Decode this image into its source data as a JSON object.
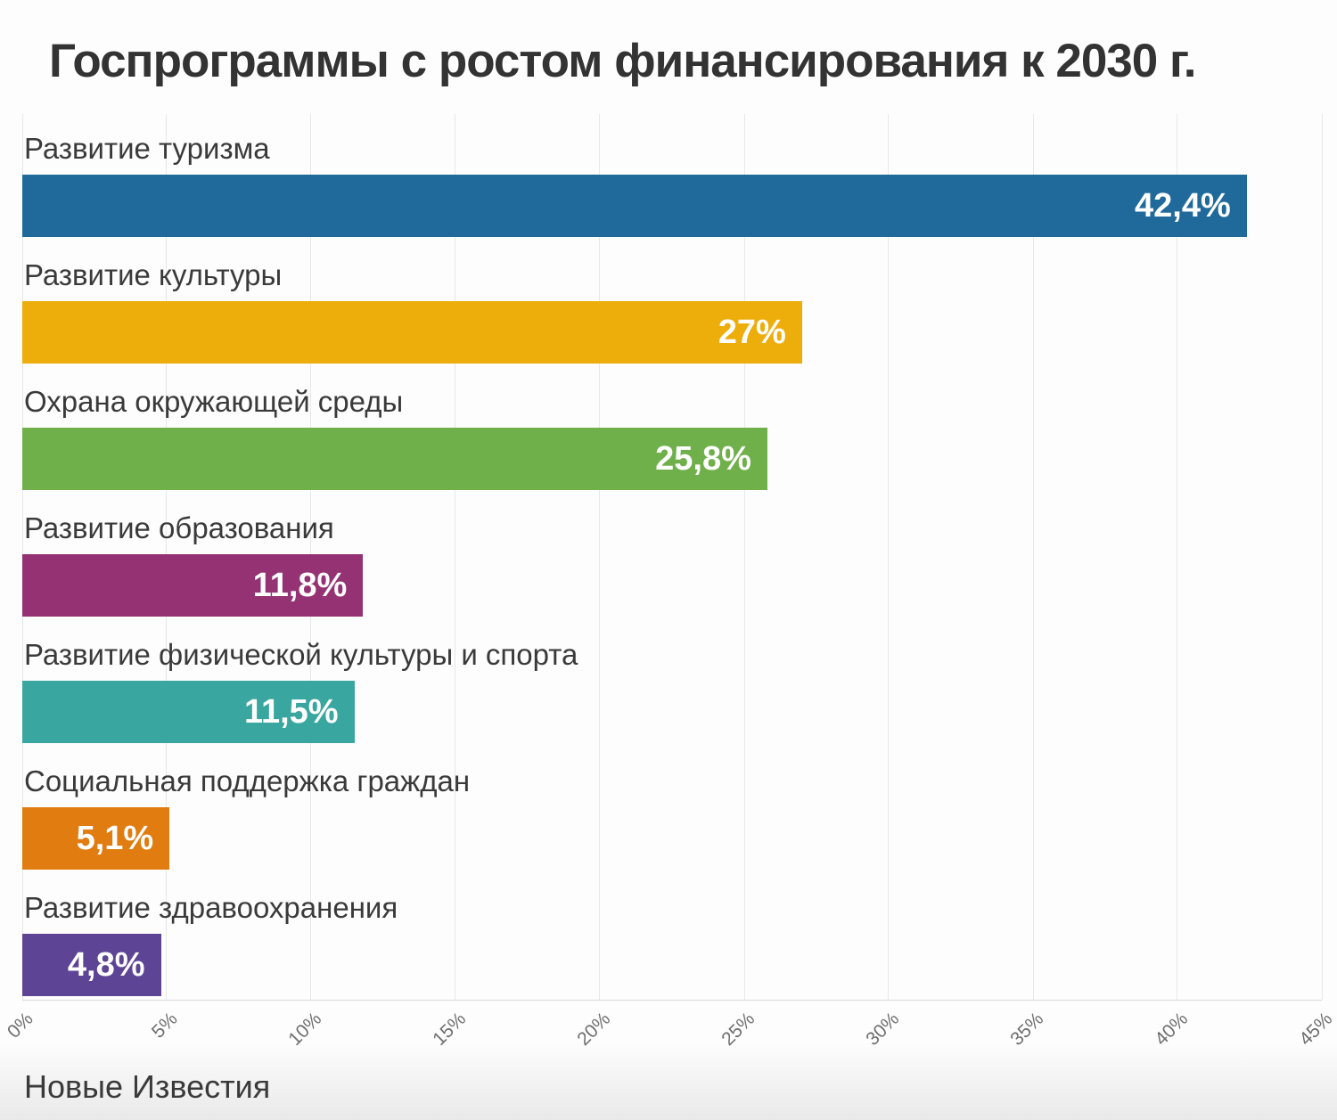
{
  "title": "Госпрограммы с ростом финансирования к 2030 г.",
  "source": "Новые Известия",
  "chart_data": {
    "type": "bar",
    "orientation": "horizontal",
    "title": "Госпрограммы с ростом финансирования к 2030 г.",
    "categories": [
      "Развитие туризма",
      "Развитие культуры",
      "Охрана окружающей среды",
      "Развитие образования",
      "Развитие физической культуры и спорта",
      "Социальная поддержка граждан",
      "Развитие здравоохранения"
    ],
    "values": [
      42.4,
      27,
      25.8,
      11.8,
      11.5,
      5.1,
      4.8
    ],
    "value_labels": [
      "42,4%",
      "27%",
      "25,8%",
      "11,8%",
      "11,5%",
      "5,1%",
      "4,8%"
    ],
    "bar_colors": [
      "#206a9b",
      "#edad0b",
      "#70b04b",
      "#943273",
      "#3aa6a0",
      "#e07c10",
      "#5e4495"
    ],
    "xlabel": "",
    "ylabel": "",
    "xlim": [
      0,
      45
    ],
    "x_ticks": [
      "0%",
      "5%",
      "10%",
      "15%",
      "20%",
      "25%",
      "30%",
      "35%",
      "40%",
      "45%"
    ],
    "grid": true,
    "gridline_color": "#e8e8e8",
    "legend": "none",
    "value_label_color": "#ffffff",
    "category_label_color": "#3a3a3a"
  }
}
